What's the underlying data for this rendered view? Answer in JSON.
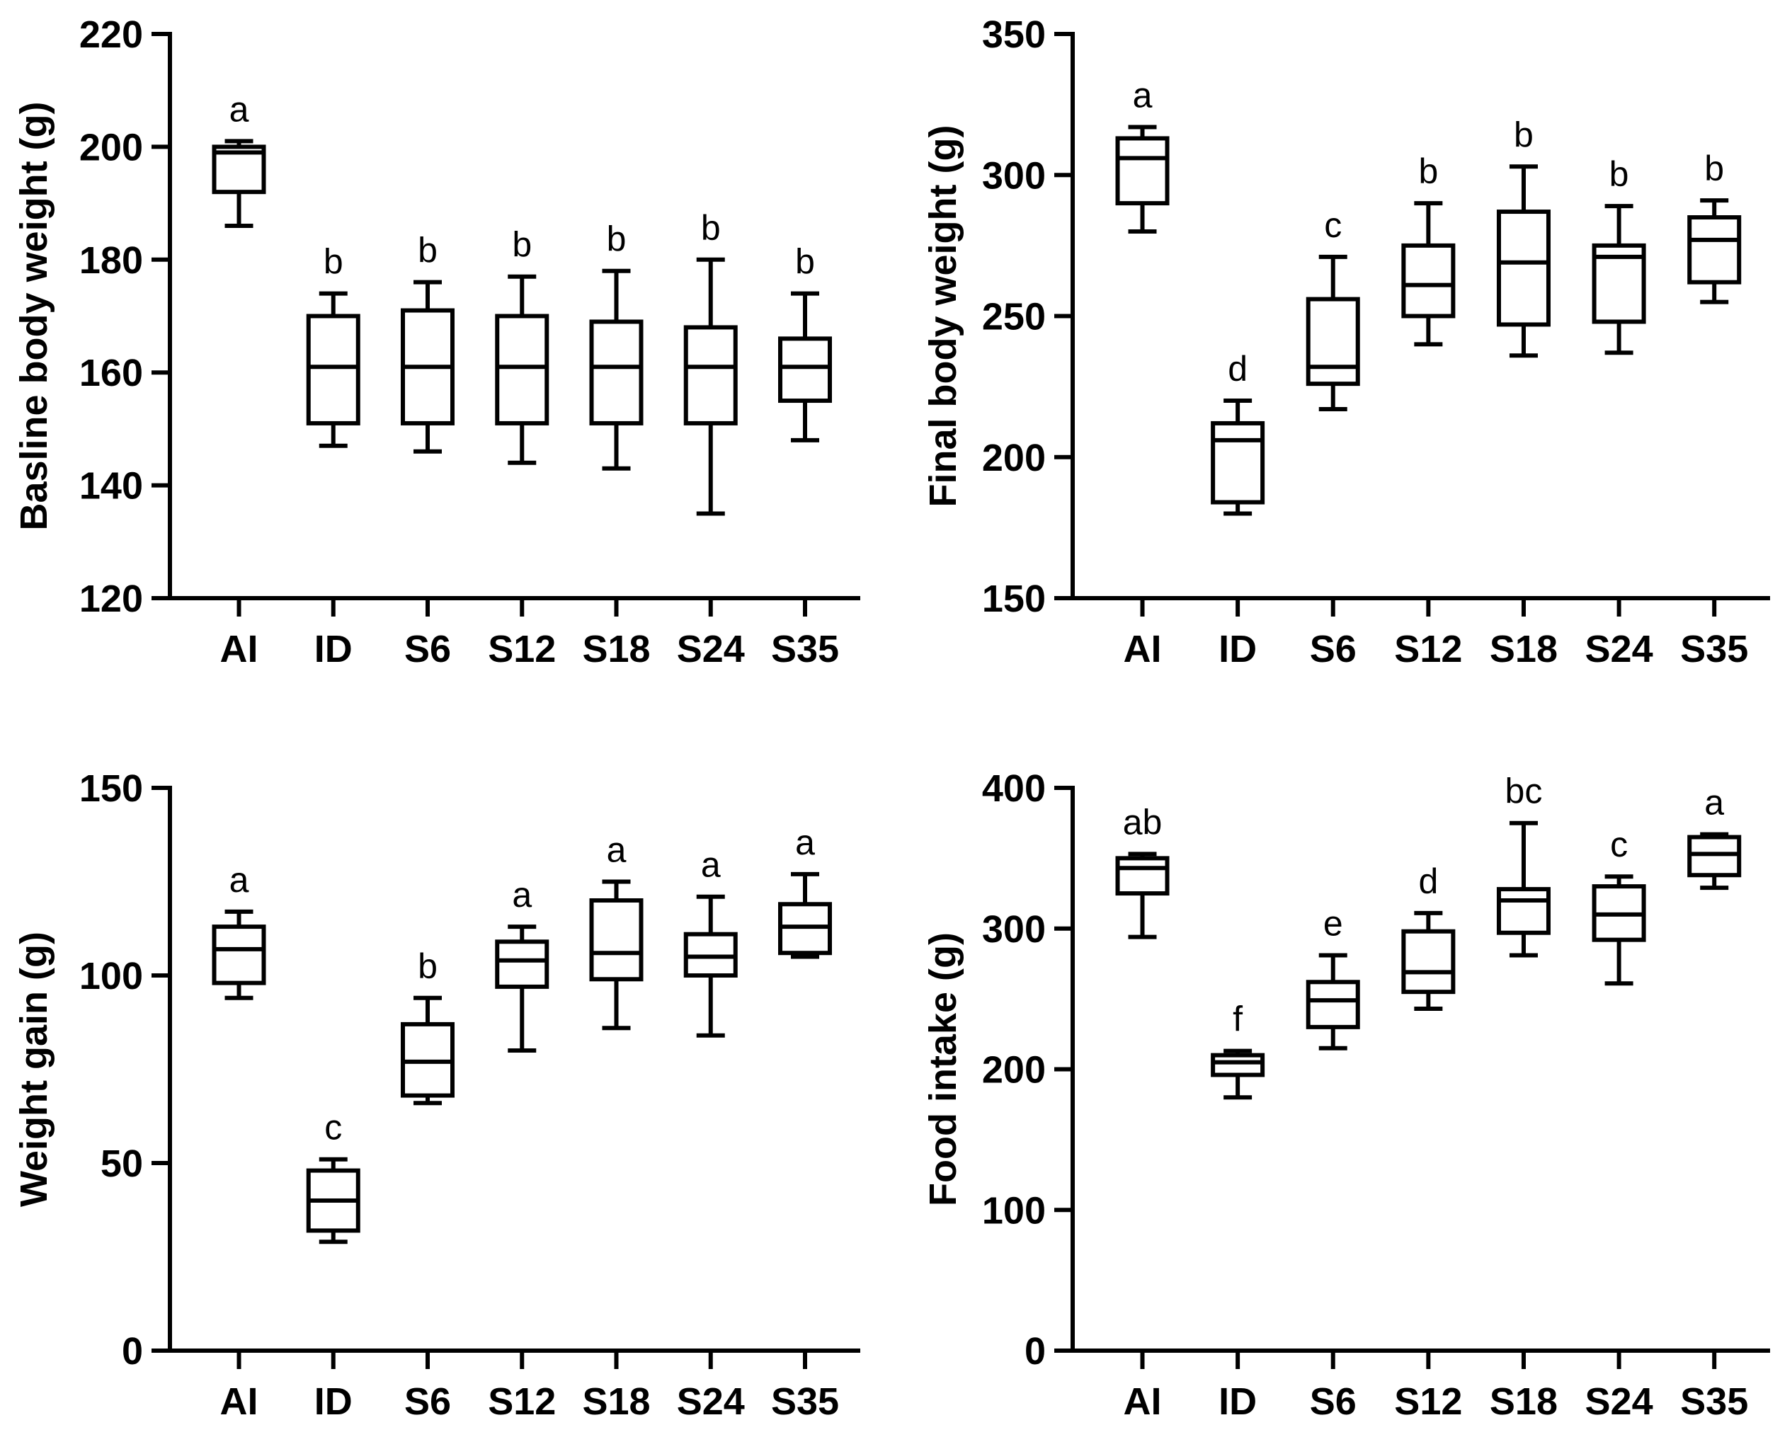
{
  "chart_data": [
    {
      "type": "box",
      "title": "",
      "xlabel": "",
      "ylabel": "Basline body weight (g)",
      "ylim": [
        120,
        220
      ],
      "yticks": [
        "120",
        "140",
        "160",
        "180",
        "200",
        "220"
      ],
      "categories": [
        "AI",
        "ID",
        "S6",
        "S12",
        "S18",
        "S24",
        "S35"
      ],
      "boxes": [
        {
          "min": 186,
          "q1": 192,
          "median": 199,
          "q3": 200,
          "max": 201
        },
        {
          "min": 147,
          "q1": 151,
          "median": 161,
          "q3": 170,
          "max": 174
        },
        {
          "min": 146,
          "q1": 151,
          "median": 161,
          "q3": 171,
          "max": 176
        },
        {
          "min": 144,
          "q1": 151,
          "median": 161,
          "q3": 170,
          "max": 177
        },
        {
          "min": 143,
          "q1": 151,
          "median": 161,
          "q3": 169,
          "max": 178
        },
        {
          "min": 135,
          "q1": 151,
          "median": 161,
          "q3": 168,
          "max": 180
        },
        {
          "min": 148,
          "q1": 155,
          "median": 161,
          "q3": 166,
          "max": 174
        }
      ],
      "significance": [
        "a",
        "b",
        "b",
        "b",
        "b",
        "b",
        "b"
      ]
    },
    {
      "type": "box",
      "title": "",
      "xlabel": "",
      "ylabel": "Final body weight (g)",
      "ylim": [
        150,
        350
      ],
      "yticks": [
        "150",
        "200",
        "250",
        "300",
        "350"
      ],
      "categories": [
        "AI",
        "ID",
        "S6",
        "S12",
        "S18",
        "S24",
        "S35"
      ],
      "boxes": [
        {
          "min": 280,
          "q1": 290,
          "median": 306,
          "q3": 313,
          "max": 317
        },
        {
          "min": 180,
          "q1": 184,
          "median": 206,
          "q3": 212,
          "max": 220
        },
        {
          "min": 217,
          "q1": 226,
          "median": 232,
          "q3": 256,
          "max": 271
        },
        {
          "min": 240,
          "q1": 250,
          "median": 261,
          "q3": 275,
          "max": 290
        },
        {
          "min": 236,
          "q1": 247,
          "median": 269,
          "q3": 287,
          "max": 303
        },
        {
          "min": 237,
          "q1": 248,
          "median": 271,
          "q3": 275,
          "max": 289
        },
        {
          "min": 255,
          "q1": 262,
          "median": 277,
          "q3": 285,
          "max": 291
        }
      ],
      "significance": [
        "a",
        "d",
        "c",
        "b",
        "b",
        "b",
        "b"
      ]
    },
    {
      "type": "box",
      "title": "",
      "xlabel": "",
      "ylabel": "Weight gain (g)",
      "ylim": [
        0,
        150
      ],
      "yticks": [
        "0",
        "50",
        "100",
        "150"
      ],
      "categories": [
        "AI",
        "ID",
        "S6",
        "S12",
        "S18",
        "S24",
        "S35"
      ],
      "boxes": [
        {
          "min": 94,
          "q1": 98,
          "median": 107,
          "q3": 113,
          "max": 117
        },
        {
          "min": 29,
          "q1": 32,
          "median": 40,
          "q3": 48,
          "max": 51
        },
        {
          "min": 66,
          "q1": 68,
          "median": 77,
          "q3": 87,
          "max": 94
        },
        {
          "min": 80,
          "q1": 97,
          "median": 104,
          "q3": 109,
          "max": 113
        },
        {
          "min": 86,
          "q1": 99,
          "median": 106,
          "q3": 120,
          "max": 125
        },
        {
          "min": 84,
          "q1": 100,
          "median": 105,
          "q3": 111,
          "max": 121
        },
        {
          "min": 105,
          "q1": 106,
          "median": 113,
          "q3": 119,
          "max": 127
        }
      ],
      "significance": [
        "a",
        "c",
        "b",
        "a",
        "a",
        "a",
        "a"
      ]
    },
    {
      "type": "box",
      "title": "",
      "xlabel": "",
      "ylabel": "Food intake (g)",
      "ylim": [
        0,
        400
      ],
      "yticks": [
        "0",
        "100",
        "200",
        "300",
        "400"
      ],
      "categories": [
        "AI",
        "ID",
        "S6",
        "S12",
        "S18",
        "S24",
        "S35"
      ],
      "boxes": [
        {
          "min": 294,
          "q1": 325,
          "median": 343,
          "q3": 350,
          "max": 353
        },
        {
          "min": 180,
          "q1": 196,
          "median": 205,
          "q3": 210,
          "max": 213
        },
        {
          "min": 215,
          "q1": 230,
          "median": 249,
          "q3": 262,
          "max": 281
        },
        {
          "min": 243,
          "q1": 255,
          "median": 269,
          "q3": 298,
          "max": 311
        },
        {
          "min": 281,
          "q1": 297,
          "median": 320,
          "q3": 328,
          "max": 375
        },
        {
          "min": 261,
          "q1": 292,
          "median": 310,
          "q3": 330,
          "max": 337
        },
        {
          "min": 329,
          "q1": 338,
          "median": 353,
          "q3": 365,
          "max": 367
        }
      ],
      "significance": [
        "ab",
        "f",
        "e",
        "d",
        "bc",
        "c",
        "a"
      ]
    }
  ]
}
